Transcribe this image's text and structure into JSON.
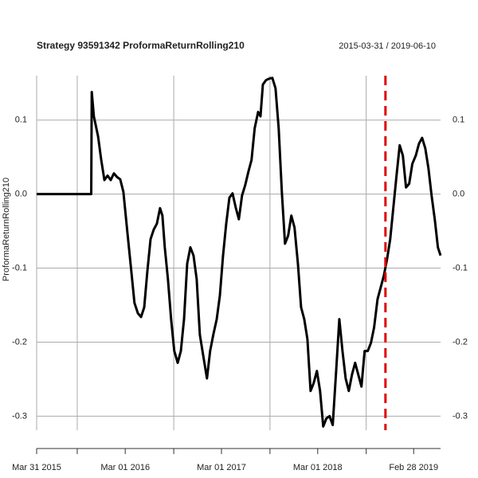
{
  "chart_data": {
    "type": "line",
    "title": "Strategy 93591342 ProformaReturnRolling210",
    "subtitle": "2015-03-31 / 2019-06-10",
    "y_label": "ProformaReturnRolling210",
    "xlim": [
      "2015-03-31",
      "2019-06-10"
    ],
    "ylim": [
      -0.319,
      0.16
    ],
    "yticks": [
      0.1,
      {
        "value": 0,
        "label": "0.0"
      },
      -0.1,
      -0.2,
      -0.3
    ],
    "xticks": [
      {
        "value": "2015-03-31",
        "label": "Mar 31 2015"
      },
      {
        "value": "2016-03-01",
        "label": "Mar 01 2016"
      },
      {
        "value": "2017-03-01",
        "label": "Mar 01 2017"
      },
      {
        "value": "2018-03-01",
        "label": "Mar 01 2018"
      },
      {
        "value": "2019-02-28",
        "label": "Feb 28 2019"
      }
    ],
    "xgrid": [
      "2015-09-01",
      "2016-09-01",
      "2017-09-01",
      "2018-09-01"
    ],
    "grid": true,
    "vline": {
      "x": "2018-11-13",
      "color": "#e00000"
    },
    "x": [
      "2015-03-31",
      "2015-06-01",
      "2015-09-01",
      "2015-10-24",
      "2015-10-26",
      "2015-11-03",
      "2015-11-19",
      "2015-12-01",
      "2015-12-13",
      "2015-12-25",
      "2016-01-06",
      "2016-01-18",
      "2016-01-30",
      "2016-02-11",
      "2016-02-23",
      "2016-03-09",
      "2016-03-24",
      "2016-04-05",
      "2016-04-18",
      "2016-04-30",
      "2016-05-12",
      "2016-05-24",
      "2016-06-05",
      "2016-06-17",
      "2016-06-29",
      "2016-07-11",
      "2016-07-20",
      "2016-07-29",
      "2016-08-10",
      "2016-08-22",
      "2016-09-03",
      "2016-09-16",
      "2016-09-28",
      "2016-10-10",
      "2016-10-22",
      "2016-11-03",
      "2016-11-15",
      "2016-11-27",
      "2016-12-09",
      "2016-12-24",
      "2017-01-05",
      "2017-01-17",
      "2017-01-29",
      "2017-02-11",
      "2017-02-23",
      "2017-03-07",
      "2017-03-19",
      "2017-03-31",
      "2017-04-12",
      "2017-04-24",
      "2017-05-06",
      "2017-05-18",
      "2017-05-30",
      "2017-06-11",
      "2017-06-23",
      "2017-07-05",
      "2017-07-18",
      "2017-07-27",
      "2017-08-05",
      "2017-08-17",
      "2017-08-29",
      "2017-09-10",
      "2017-09-22",
      "2017-10-04",
      "2017-10-16",
      "2017-10-28",
      "2017-11-09",
      "2017-11-21",
      "2017-12-03",
      "2017-12-16",
      "2017-12-28",
      "2018-01-09",
      "2018-01-21",
      "2018-02-02",
      "2018-02-14",
      "2018-02-26",
      "2018-03-10",
      "2018-03-22",
      "2018-04-03",
      "2018-04-15",
      "2018-04-27",
      "2018-05-10",
      "2018-05-22",
      "2018-06-03",
      "2018-06-15",
      "2018-06-27",
      "2018-07-09",
      "2018-07-21",
      "2018-08-02",
      "2018-08-14",
      "2018-08-26",
      "2018-09-07",
      "2018-09-19",
      "2018-10-01",
      "2018-10-14",
      "2018-10-26",
      "2018-11-07",
      "2018-11-19",
      "2018-12-01",
      "2018-12-13",
      "2018-12-25",
      "2019-01-06",
      "2019-01-18",
      "2019-01-30",
      "2019-02-11",
      "2019-02-23",
      "2019-03-08",
      "2019-03-20",
      "2019-04-01",
      "2019-04-13",
      "2019-04-25",
      "2019-05-07",
      "2019-05-19",
      "2019-05-31",
      "2019-06-10"
    ],
    "series": [
      {
        "name": "ProformaReturnRolling210",
        "color": "#000000",
        "values": [
          0,
          0,
          0,
          0,
          0.138,
          0.105,
          0.078,
          0.046,
          0.019,
          0.025,
          0.019,
          0.028,
          0.023,
          0.02,
          0.003,
          -0.051,
          -0.104,
          -0.147,
          -0.161,
          -0.166,
          -0.153,
          -0.104,
          -0.061,
          -0.048,
          -0.04,
          -0.019,
          -0.029,
          -0.072,
          -0.115,
          -0.169,
          -0.212,
          -0.228,
          -0.212,
          -0.169,
          -0.094,
          -0.072,
          -0.083,
          -0.115,
          -0.19,
          -0.223,
          -0.249,
          -0.212,
          -0.19,
          -0.169,
          -0.137,
          -0.083,
          -0.04,
          -0.005,
          0.001,
          -0.018,
          -0.034,
          -0.002,
          0.012,
          0.03,
          0.046,
          0.089,
          0.111,
          0.105,
          0.148,
          0.154,
          0.156,
          0.157,
          0.143,
          0.089,
          0.003,
          -0.067,
          -0.056,
          -0.029,
          -0.045,
          -0.094,
          -0.153,
          -0.169,
          -0.196,
          -0.266,
          -0.255,
          -0.239,
          -0.266,
          -0.314,
          -0.303,
          -0.3,
          -0.312,
          -0.239,
          -0.169,
          -0.212,
          -0.249,
          -0.266,
          -0.244,
          -0.228,
          -0.244,
          -0.26,
          -0.212,
          -0.212,
          -0.201,
          -0.18,
          -0.142,
          -0.126,
          -0.11,
          -0.088,
          -0.061,
          -0.018,
          0.025,
          0.066,
          0.052,
          0.009,
          0.014,
          0.041,
          0.052,
          0.068,
          0.076,
          0.062,
          0.035,
          -0.002,
          -0.034,
          -0.072,
          -0.083
        ]
      }
    ]
  }
}
